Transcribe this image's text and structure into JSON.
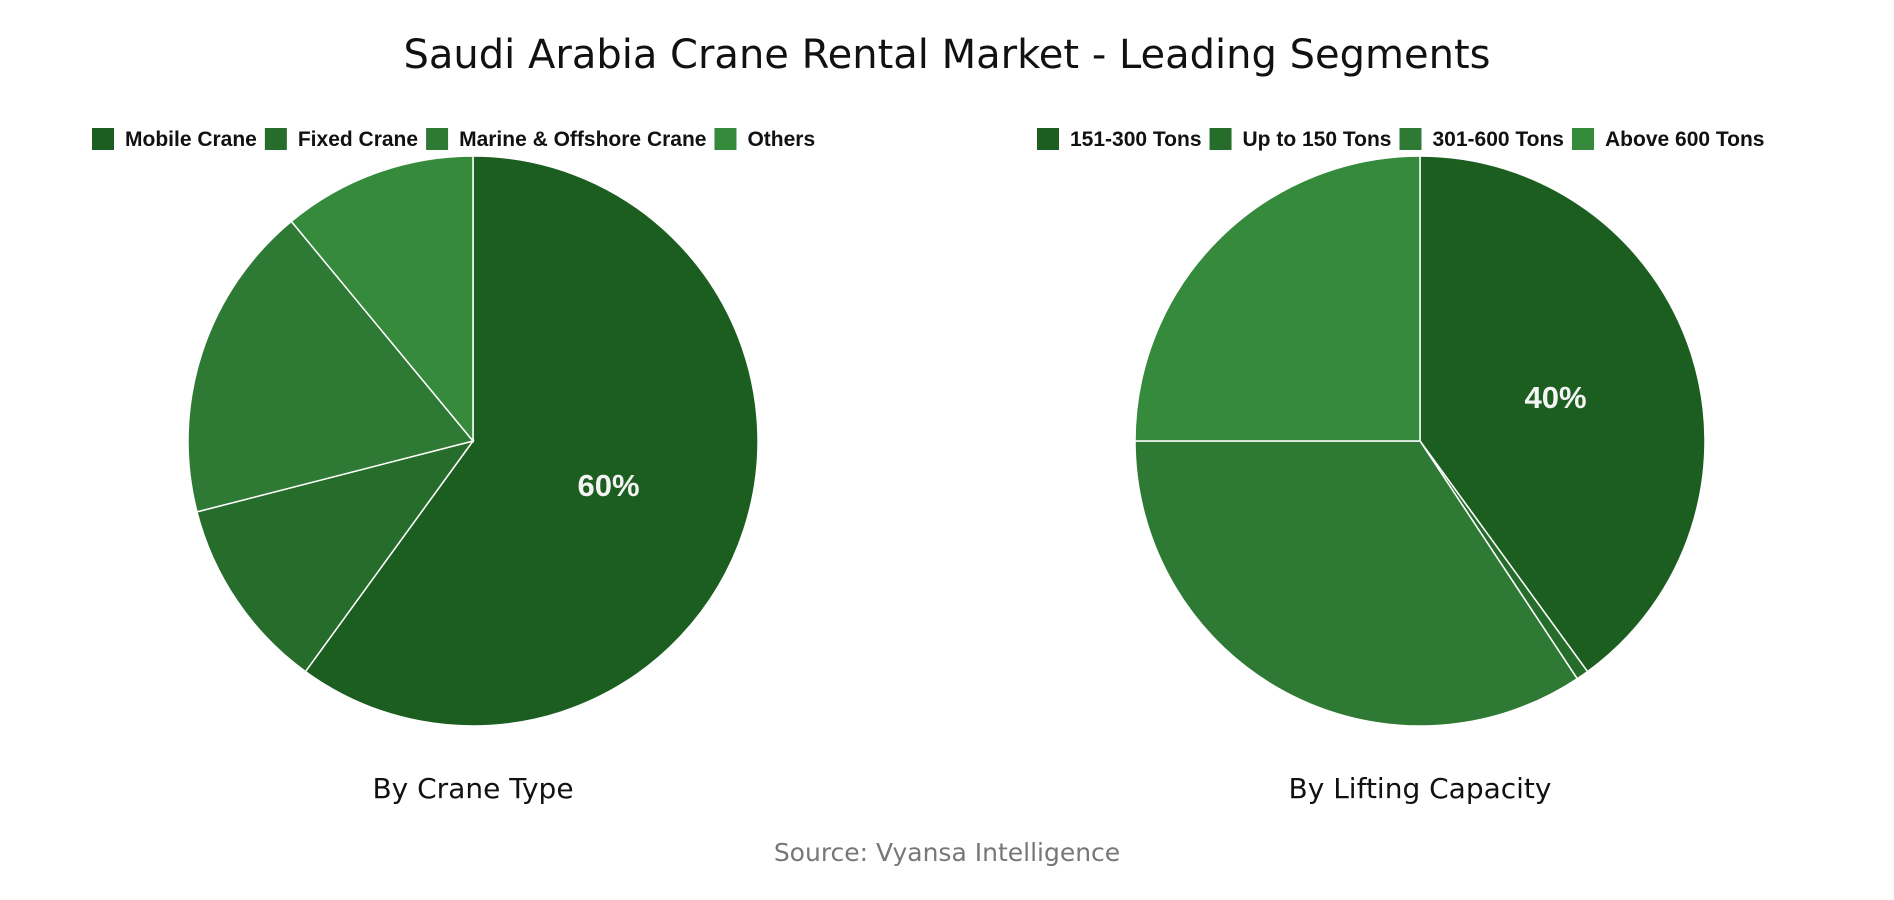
{
  "title": "Saudi Arabia Crane Rental Market - Leading Segments",
  "source": "Source: Vyansa Intelligence",
  "chart_data": [
    {
      "type": "pie",
      "title": "By Crane Type",
      "legend_position": "top",
      "start": "12 o'clock, clockwise",
      "categories": [
        "Mobile Crane",
        "Fixed Crane",
        "Marine & Offshore Crane",
        "Others"
      ],
      "values": [
        60,
        11,
        18,
        11
      ],
      "colors": [
        "#1b5e20",
        "#266d2b",
        "#2e7a34",
        "#358a3b"
      ],
      "data_labels": [
        "60%",
        "",
        "",
        ""
      ]
    },
    {
      "type": "pie",
      "title": "By Lifting Capacity",
      "legend_position": "top",
      "start": "12 o'clock, clockwise",
      "categories": [
        "151-300 Tons",
        "Up to 150 Tons",
        "301-600 Tons",
        "Above 600 Tons"
      ],
      "values": [
        40,
        0.7,
        34.3,
        25
      ],
      "colors": [
        "#1b5e20",
        "#266d2b",
        "#2e7a34",
        "#358a3b"
      ],
      "data_labels": [
        "40%",
        "",
        "",
        ""
      ]
    }
  ]
}
